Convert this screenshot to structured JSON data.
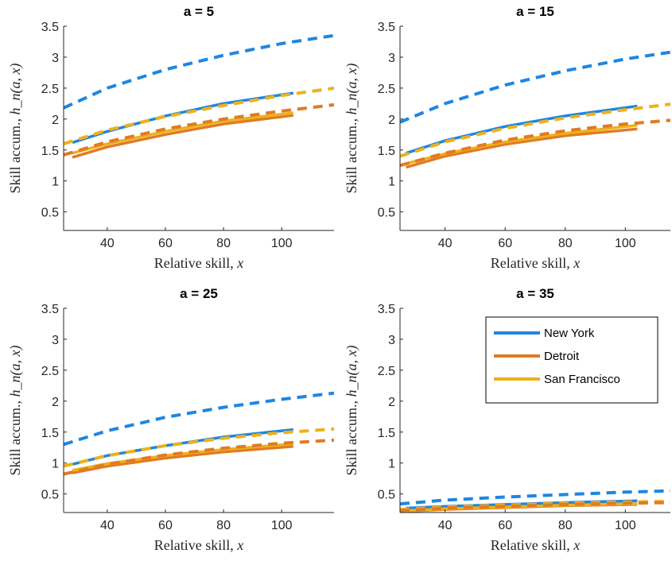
{
  "colors": {
    "new_york": "#1f86e0",
    "detroit": "#e07b24",
    "san_francisco": "#edb11a",
    "axis": "#262626"
  },
  "legend": {
    "entries": [
      {
        "label": "New York",
        "color": "#1f86e0"
      },
      {
        "label": "Detroit",
        "color": "#e07b24"
      },
      {
        "label": "San Francisco",
        "color": "#edb11a"
      }
    ],
    "placement": "top-right of panel a = 35"
  },
  "chart_data": [
    {
      "type": "line",
      "title": "a = 5",
      "xlabel_text": "Relative skill, ",
      "xlabel_var": "x",
      "ylabel_text": "Skill accum., ",
      "ylabel_var": "h_n(a, x)",
      "xlim": [
        25,
        118
      ],
      "ylim": [
        0.2,
        3.5
      ],
      "xticks": [
        40,
        60,
        80,
        100
      ],
      "yticks": [
        0.5,
        1,
        1.5,
        2,
        2.5,
        3,
        3.5
      ],
      "series": [
        {
          "name": "New York",
          "style": "solid",
          "x": [
            28,
            40,
            60,
            80,
            104
          ],
          "y": [
            1.62,
            1.8,
            2.05,
            2.25,
            2.42
          ]
        },
        {
          "name": "Detroit",
          "style": "solid",
          "x": [
            28,
            40,
            60,
            80,
            104
          ],
          "y": [
            1.38,
            1.55,
            1.75,
            1.92,
            2.06
          ]
        },
        {
          "name": "San Francisco",
          "style": "solid",
          "x": [
            28,
            40,
            60,
            80,
            104
          ],
          "y": [
            1.45,
            1.6,
            1.8,
            1.97,
            2.1
          ]
        },
        {
          "style": "dashed",
          "color": "#1f86e0",
          "x": [
            25,
            40,
            60,
            80,
            100,
            118
          ],
          "y": [
            2.18,
            2.5,
            2.8,
            3.03,
            3.22,
            3.35
          ]
        },
        {
          "style": "dashed",
          "color": "#edb11a",
          "x": [
            25,
            40,
            60,
            80,
            100,
            118
          ],
          "y": [
            1.6,
            1.82,
            2.04,
            2.22,
            2.38,
            2.5
          ]
        },
        {
          "style": "dashed",
          "color": "#e07b24",
          "x": [
            25,
            40,
            60,
            80,
            100,
            118
          ],
          "y": [
            1.42,
            1.63,
            1.84,
            2.0,
            2.13,
            2.23
          ]
        }
      ]
    },
    {
      "type": "line",
      "title": "a = 15",
      "xlabel_text": "Relative skill, ",
      "xlabel_var": "x",
      "ylabel_text": "Skill accum., ",
      "ylabel_var": "h_n(a, x)",
      "xlim": [
        25,
        115
      ],
      "ylim": [
        0.2,
        3.5
      ],
      "xticks": [
        40,
        60,
        80,
        100
      ],
      "yticks": [
        0.5,
        1,
        1.5,
        2,
        2.5,
        3,
        3.5
      ],
      "series": [
        {
          "name": "New York",
          "style": "solid",
          "x": [
            27,
            40,
            60,
            80,
            104
          ],
          "y": [
            1.45,
            1.65,
            1.88,
            2.05,
            2.21
          ]
        },
        {
          "name": "Detroit",
          "style": "solid",
          "x": [
            27,
            40,
            60,
            80,
            104
          ],
          "y": [
            1.22,
            1.4,
            1.59,
            1.73,
            1.84
          ]
        },
        {
          "name": "San Francisco",
          "style": "solid",
          "x": [
            27,
            40,
            60,
            80,
            104
          ],
          "y": [
            1.28,
            1.44,
            1.63,
            1.77,
            1.9
          ]
        },
        {
          "style": "dashed",
          "color": "#1f86e0",
          "x": [
            25,
            40,
            60,
            80,
            100,
            115
          ],
          "y": [
            1.95,
            2.25,
            2.55,
            2.78,
            2.97,
            3.08
          ]
        },
        {
          "style": "dashed",
          "color": "#edb11a",
          "x": [
            25,
            40,
            60,
            80,
            100,
            115
          ],
          "y": [
            1.4,
            1.63,
            1.85,
            2.02,
            2.15,
            2.24
          ]
        },
        {
          "style": "dashed",
          "color": "#e07b24",
          "x": [
            25,
            40,
            60,
            80,
            100,
            115
          ],
          "y": [
            1.25,
            1.45,
            1.66,
            1.81,
            1.92,
            1.98
          ]
        }
      ]
    },
    {
      "type": "line",
      "title": "a = 25",
      "xlabel_text": "Relative skill, ",
      "xlabel_var": "x",
      "ylabel_text": "Skill accum., ",
      "ylabel_var": "h_n(a, x)",
      "xlim": [
        25,
        118
      ],
      "ylim": [
        0.2,
        3.5
      ],
      "xticks": [
        40,
        60,
        80,
        100
      ],
      "yticks": [
        0.5,
        1,
        1.5,
        2,
        2.5,
        3,
        3.5
      ],
      "series": [
        {
          "name": "New York",
          "style": "solid",
          "x": [
            28,
            40,
            60,
            80,
            104
          ],
          "y": [
            0.98,
            1.12,
            1.28,
            1.42,
            1.54
          ]
        },
        {
          "name": "Detroit",
          "style": "solid",
          "x": [
            28,
            40,
            60,
            80,
            104
          ],
          "y": [
            0.84,
            0.95,
            1.08,
            1.18,
            1.27
          ]
        },
        {
          "name": "San Francisco",
          "style": "solid",
          "x": [
            28,
            40,
            60,
            80,
            104
          ],
          "y": [
            0.88,
            0.99,
            1.12,
            1.22,
            1.31
          ]
        },
        {
          "style": "dashed",
          "color": "#1f86e0",
          "x": [
            25,
            40,
            60,
            80,
            100,
            118
          ],
          "y": [
            1.3,
            1.52,
            1.74,
            1.9,
            2.03,
            2.13
          ]
        },
        {
          "style": "dashed",
          "color": "#edb11a",
          "x": [
            25,
            40,
            60,
            80,
            100,
            118
          ],
          "y": [
            0.95,
            1.12,
            1.28,
            1.4,
            1.49,
            1.55
          ]
        },
        {
          "style": "dashed",
          "color": "#e07b24",
          "x": [
            25,
            40,
            60,
            80,
            100,
            118
          ],
          "y": [
            0.82,
            0.98,
            1.13,
            1.24,
            1.32,
            1.37
          ]
        }
      ]
    },
    {
      "type": "line",
      "title": "a = 35",
      "xlabel_text": "Relative skill, ",
      "xlabel_var": "x",
      "ylabel_text": "Skill accum., ",
      "ylabel_var": "h_n(a, x)",
      "xlim": [
        25,
        115
      ],
      "ylim": [
        0.2,
        3.5
      ],
      "xticks": [
        40,
        60,
        80,
        100
      ],
      "yticks": [
        0.5,
        1,
        1.5,
        2,
        2.5,
        3,
        3.5
      ],
      "series": [
        {
          "name": "New York",
          "style": "solid",
          "x": [
            27,
            40,
            60,
            80,
            104
          ],
          "y": [
            0.27,
            0.3,
            0.33,
            0.36,
            0.39
          ]
        },
        {
          "name": "Detroit",
          "style": "solid",
          "x": [
            27,
            40,
            60,
            80,
            104
          ],
          "y": [
            0.22,
            0.25,
            0.28,
            0.31,
            0.33
          ]
        },
        {
          "name": "San Francisco",
          "style": "solid",
          "x": [
            27,
            40,
            60,
            80,
            104
          ],
          "y": [
            0.23,
            0.26,
            0.29,
            0.32,
            0.34
          ]
        },
        {
          "style": "dashed",
          "color": "#1f86e0",
          "x": [
            25,
            40,
            60,
            80,
            100,
            115
          ],
          "y": [
            0.34,
            0.4,
            0.45,
            0.49,
            0.53,
            0.55
          ]
        },
        {
          "style": "dashed",
          "color": "#edb11a",
          "x": [
            25,
            40,
            60,
            80,
            100,
            115
          ],
          "y": [
            0.25,
            0.29,
            0.32,
            0.35,
            0.37,
            0.38
          ]
        },
        {
          "style": "dashed",
          "color": "#e07b24",
          "x": [
            25,
            40,
            60,
            80,
            100,
            115
          ],
          "y": [
            0.23,
            0.27,
            0.3,
            0.33,
            0.35,
            0.36
          ]
        }
      ]
    }
  ]
}
